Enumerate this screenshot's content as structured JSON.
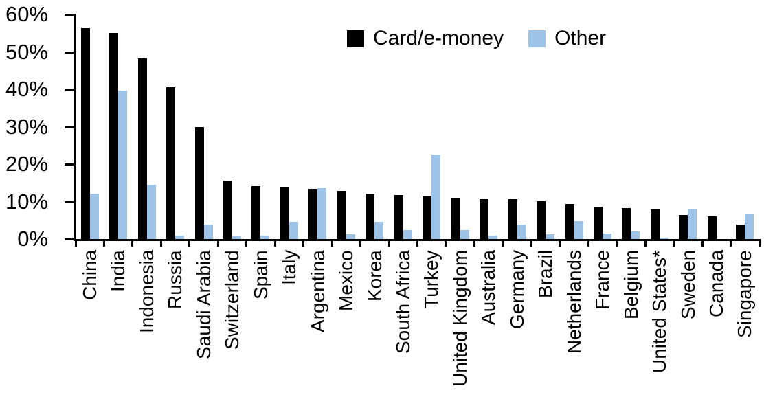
{
  "chart_data": {
    "type": "bar",
    "title": "",
    "xlabel": "",
    "ylabel": "",
    "grid": false,
    "legend_position": "top-center",
    "ylim": [
      0,
      60
    ],
    "ytick_labels": [
      "60%",
      "50%",
      "40%",
      "30%",
      "20%",
      "10%",
      "0%"
    ],
    "ytick_values": [
      60,
      50,
      40,
      30,
      20,
      10,
      0
    ],
    "categories": [
      "China",
      "India",
      "Indonesia",
      "Russia",
      "Saudi Arabia",
      "Switzerland",
      "Spain",
      "Italy",
      "Argentina",
      "Mexico",
      "Korea",
      "South Africa",
      "Turkey",
      "United Kingdom",
      "Australia",
      "Germany",
      "Brazil",
      "Netherlands",
      "France",
      "Belgium",
      "United States*",
      "Sweden",
      "Canada",
      "Singapore"
    ],
    "series": [
      {
        "name": "Card/e-money",
        "color": "#000000",
        "values": [
          56.3,
          55.0,
          48.2,
          40.5,
          29.9,
          15.6,
          14.2,
          13.9,
          13.4,
          12.9,
          12.2,
          11.7,
          11.6,
          11.0,
          10.8,
          10.6,
          10.1,
          9.4,
          8.7,
          8.2,
          7.9,
          6.5,
          6.0,
          3.9
        ]
      },
      {
        "name": "Other",
        "color": "#9DC3E6",
        "values": [
          12.2,
          39.7,
          14.5,
          0.9,
          3.8,
          0.7,
          1.0,
          4.6,
          13.8,
          1.3,
          4.5,
          2.3,
          22.5,
          2.3,
          1.0,
          3.8,
          1.2,
          4.8,
          1.5,
          2.0,
          0.3,
          8.0,
          0.0,
          6.7
        ]
      }
    ]
  }
}
